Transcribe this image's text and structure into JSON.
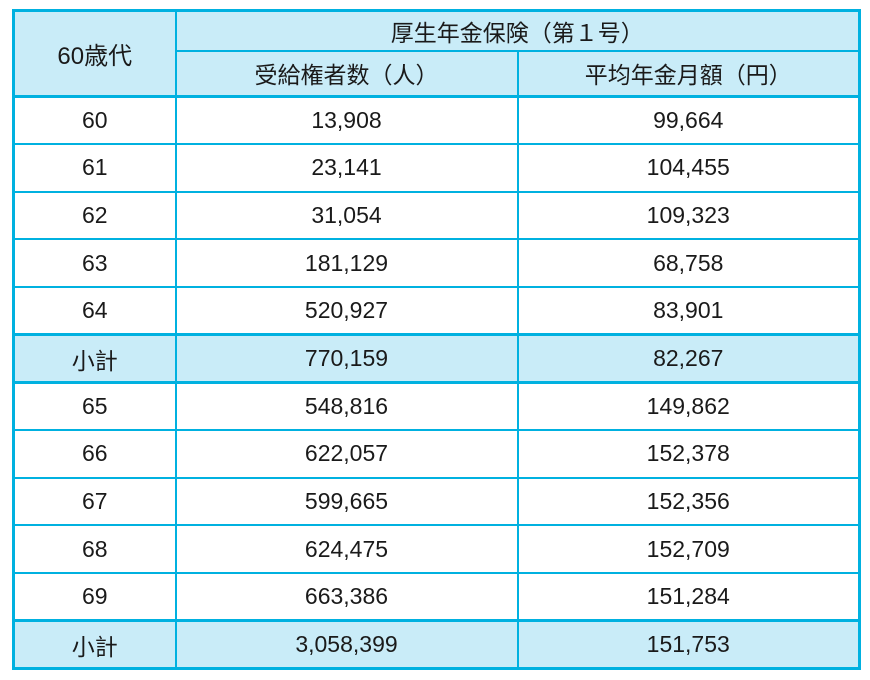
{
  "colors": {
    "border": "#00b1e0",
    "header_bg": "#c9ecf8",
    "text": "#1a1a1a"
  },
  "table": {
    "corner_label": "60歳代",
    "group_header": "厚生年金保険（第１号）",
    "columns": [
      "受給権者数（人）",
      "平均年金月額（円）"
    ],
    "rows": [
      {
        "label": "60",
        "values": [
          "13,908",
          "99,664"
        ],
        "subtotal": false
      },
      {
        "label": "61",
        "values": [
          "23,141",
          "104,455"
        ],
        "subtotal": false
      },
      {
        "label": "62",
        "values": [
          "31,054",
          "109,323"
        ],
        "subtotal": false
      },
      {
        "label": "63",
        "values": [
          "181,129",
          "68,758"
        ],
        "subtotal": false
      },
      {
        "label": "64",
        "values": [
          "520,927",
          "83,901"
        ],
        "subtotal": false
      },
      {
        "label": "小計",
        "values": [
          "770,159",
          "82,267"
        ],
        "subtotal": true
      },
      {
        "label": "65",
        "values": [
          "548,816",
          "149,862"
        ],
        "subtotal": false
      },
      {
        "label": "66",
        "values": [
          "622,057",
          "152,378"
        ],
        "subtotal": false
      },
      {
        "label": "67",
        "values": [
          "599,665",
          "152,356"
        ],
        "subtotal": false
      },
      {
        "label": "68",
        "values": [
          "624,475",
          "152,709"
        ],
        "subtotal": false
      },
      {
        "label": "69",
        "values": [
          "663,386",
          "151,284"
        ],
        "subtotal": false
      },
      {
        "label": "小計",
        "values": [
          "3,058,399",
          "151,753"
        ],
        "subtotal": true
      }
    ]
  },
  "chart_data": {
    "type": "table",
    "title": "厚生年金保険（第１号）",
    "columns": [
      "60歳代",
      "受給権者数（人）",
      "平均年金月額（円）"
    ],
    "rows": [
      [
        "60",
        13908,
        99664
      ],
      [
        "61",
        23141,
        104455
      ],
      [
        "62",
        31054,
        109323
      ],
      [
        "63",
        181129,
        68758
      ],
      [
        "64",
        520927,
        83901
      ],
      [
        "小計",
        770159,
        82267
      ],
      [
        "65",
        548816,
        149862
      ],
      [
        "66",
        622057,
        152378
      ],
      [
        "67",
        599665,
        152356
      ],
      [
        "68",
        624475,
        152709
      ],
      [
        "69",
        663386,
        151284
      ],
      [
        "小計",
        3058399,
        151753
      ]
    ]
  }
}
